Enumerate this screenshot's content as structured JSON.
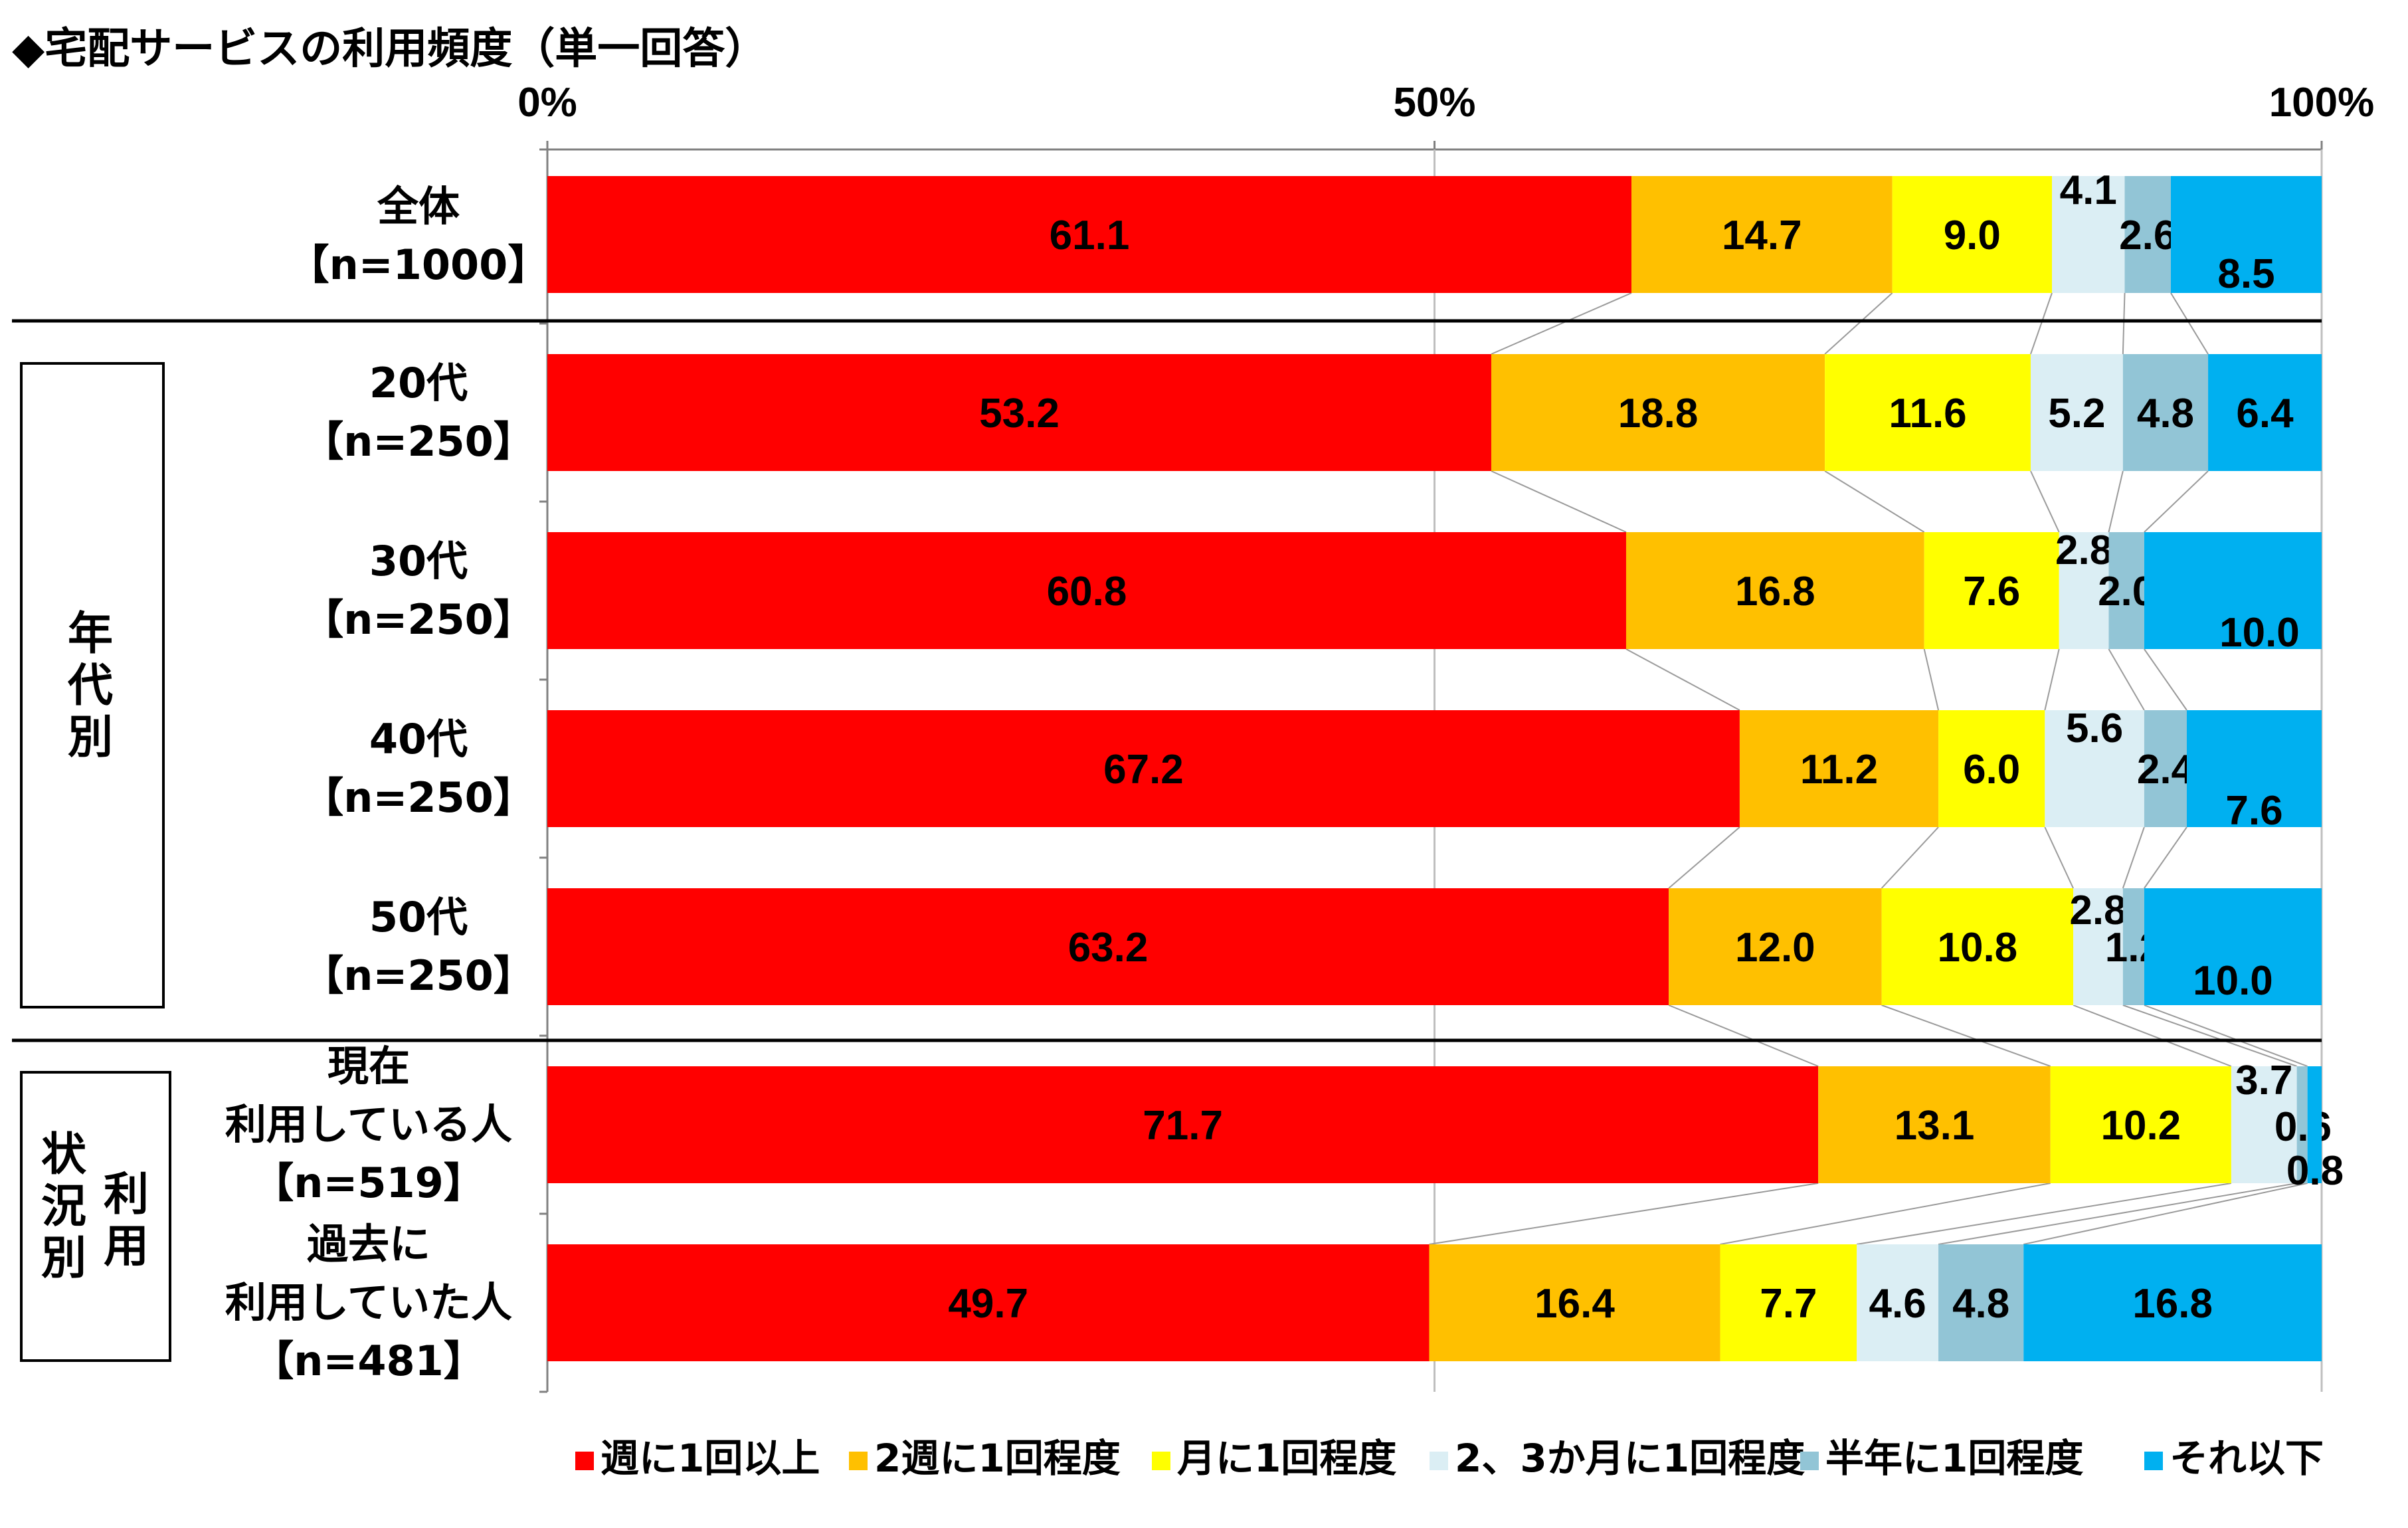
{
  "title": "◆宅配サービスの利用頻度（単一回答）",
  "groups": {
    "age": [
      "年",
      "代",
      "別"
    ],
    "usage_outer": [
      "状",
      "況",
      "別"
    ],
    "usage_inner": [
      "利",
      "用"
    ]
  },
  "chart_data": {
    "type": "bar",
    "orientation": "horizontal",
    "stacked": "100%",
    "xlim": [
      0,
      100
    ],
    "x_ticks": [
      "0%",
      "50%",
      "100%"
    ],
    "categories": [
      [
        "全体",
        "【n=1000】"
      ],
      [
        "20代",
        "【n=250】"
      ],
      [
        "30代",
        "【n=250】"
      ],
      [
        "40代",
        "【n=250】"
      ],
      [
        "50代",
        "【n=250】"
      ],
      [
        "現在",
        "利用している人",
        "【n=519】"
      ],
      [
        "過去に",
        "利用していた人",
        "【n=481】"
      ]
    ],
    "series": [
      {
        "name": "週に1回以上",
        "color": "#ff0000",
        "values": [
          61.1,
          53.2,
          60.8,
          67.2,
          63.2,
          71.7,
          49.7
        ]
      },
      {
        "name": "2週に1回程度",
        "color": "#ffc000",
        "values": [
          14.7,
          18.8,
          16.8,
          11.2,
          12.0,
          13.1,
          16.4
        ]
      },
      {
        "name": "月に1回程度",
        "color": "#ffff00",
        "values": [
          9.0,
          11.6,
          7.6,
          6.0,
          10.8,
          10.2,
          7.7
        ]
      },
      {
        "name": "2、3か月に1回程度",
        "color": "#dbeef4",
        "values": [
          4.1,
          5.2,
          2.8,
          5.6,
          2.8,
          3.7,
          4.6
        ]
      },
      {
        "name": "半年に1回程度",
        "color": "#92c5d6",
        "values": [
          2.6,
          4.8,
          2.0,
          2.4,
          1.2,
          0.6,
          4.8
        ]
      },
      {
        "name": "それ以下",
        "color": "#00b0f0",
        "values": [
          8.5,
          6.4,
          10.0,
          7.6,
          10.0,
          0.8,
          16.8
        ]
      }
    ],
    "value_labels": [
      [
        "61.1",
        "14.7",
        "9.0",
        "4.1",
        "2.6",
        "8.5"
      ],
      [
        "53.2",
        "18.8",
        "11.6",
        "5.2",
        "4.8",
        "6.4"
      ],
      [
        "60.8",
        "16.8",
        "7.6",
        "2.8",
        "2.0",
        "10.0"
      ],
      [
        "67.2",
        "11.2",
        "6.0",
        "5.6",
        "2.4",
        "7.6"
      ],
      [
        "63.2",
        "12.0",
        "10.8",
        "2.8",
        "1.2",
        "10.0"
      ],
      [
        "71.7",
        "13.1",
        "10.2",
        "3.7",
        "0.6",
        "0.8"
      ],
      [
        "49.7",
        "16.4",
        "7.7",
        "4.6",
        "4.8",
        "16.8"
      ]
    ],
    "legend_position": "bottom",
    "series_lines": true,
    "grid": "50% vertical line"
  }
}
